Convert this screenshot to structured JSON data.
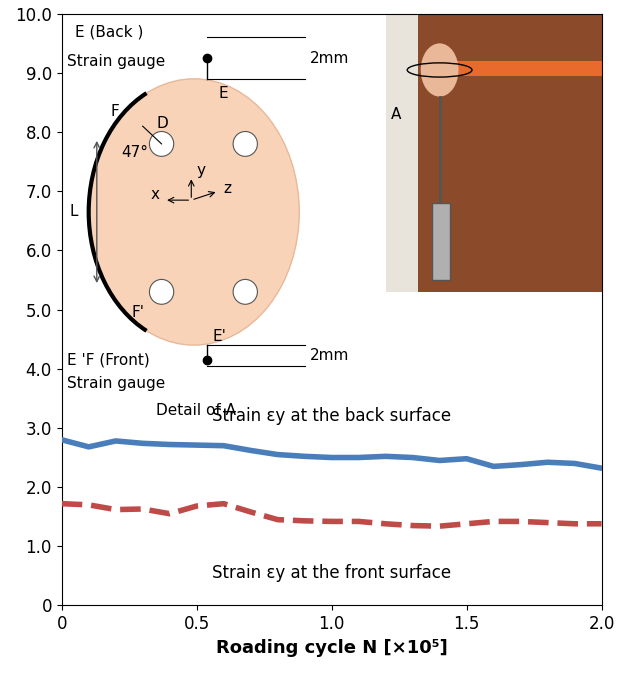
{
  "chart_data": {
    "type": "line",
    "xlabel": "Roading cycle N [×10⁵]",
    "x": [
      0,
      0.1,
      0.2,
      0.3,
      0.4,
      0.5,
      0.6,
      0.7,
      0.8,
      0.9,
      1.0,
      1.1,
      1.2,
      1.3,
      1.4,
      1.5,
      1.6,
      1.7,
      1.8,
      1.9,
      2.0
    ],
    "xlim": [
      0,
      2
    ],
    "xticks": [
      0,
      0.5,
      {
        "value": 1,
        "label": "1.0"
      },
      1.5,
      {
        "value": 2,
        "label": "2.0"
      }
    ],
    "ylim": [
      0,
      10
    ],
    "yticks": [
      0,
      {
        "value": 1,
        "label": "1.0"
      },
      {
        "value": 2,
        "label": "2.0"
      },
      {
        "value": 3,
        "label": "3.0"
      },
      {
        "value": 4,
        "label": "4.0"
      },
      {
        "value": 5,
        "label": "5.0"
      },
      {
        "value": 6,
        "label": "6.0"
      },
      {
        "value": 7,
        "label": "7.0"
      },
      {
        "value": 8,
        "label": "8.0"
      },
      {
        "value": 9,
        "label": "9.0"
      },
      {
        "value": 10,
        "label": "10.0"
      }
    ],
    "grid": false,
    "series": [
      {
        "name": "Strain εy at the back surface",
        "color": "#4a7ebb",
        "line_style": "solid",
        "values": [
          2.8,
          2.68,
          2.78,
          2.74,
          2.72,
          2.71,
          2.7,
          2.62,
          2.55,
          2.52,
          2.5,
          2.5,
          2.52,
          2.5,
          2.45,
          2.48,
          2.35,
          2.38,
          2.42,
          2.4,
          2.32
        ]
      },
      {
        "name": "Strain εy at the front surface",
        "color": "#be4b48",
        "line_style": "dashed",
        "values": [
          1.72,
          1.7,
          1.62,
          1.63,
          1.55,
          1.68,
          1.72,
          1.58,
          1.45,
          1.43,
          1.42,
          1.42,
          1.38,
          1.35,
          1.34,
          1.38,
          1.42,
          1.42,
          1.4,
          1.38,
          1.38
        ]
      }
    ],
    "annotations": [
      "E (Back )",
      "Strain gauge",
      "2mm",
      "E",
      "F",
      "D",
      "47°",
      "L",
      "F'",
      "E'",
      "E 'F (Front)",
      "Strain gauge",
      "2mm",
      "Detail of A",
      "y",
      "x",
      "z",
      "A"
    ]
  }
}
